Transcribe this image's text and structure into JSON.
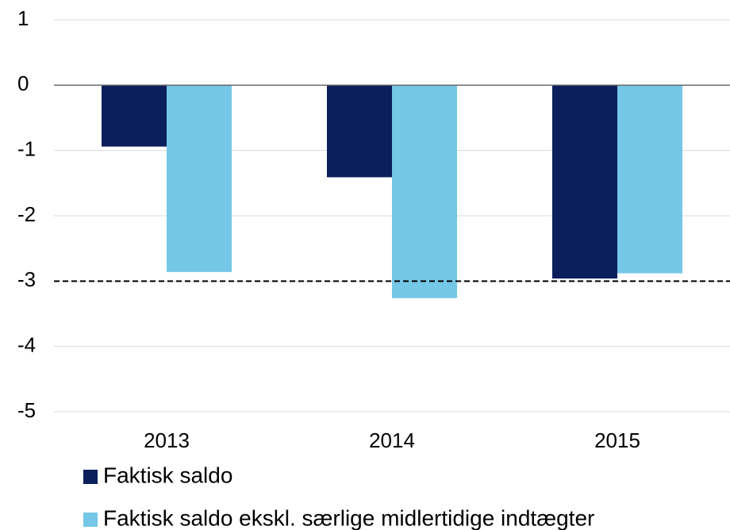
{
  "chart_data": {
    "type": "bar",
    "categories": [
      "2013",
      "2014",
      "2015"
    ],
    "series": [
      {
        "name": "Faktisk saldo",
        "color": "#0b1f5c",
        "values": [
          -0.94,
          -1.41,
          -2.96
        ]
      },
      {
        "name": "Faktisk saldo ekskl. særlige midlertidige indtægter",
        "color": "#74c7e6",
        "values": [
          -2.86,
          -3.26,
          -2.88
        ]
      }
    ],
    "ylim": [
      -5,
      1
    ],
    "yticks": [
      1,
      0,
      -1,
      -2,
      -3,
      -4,
      -5
    ],
    "grid": true,
    "reference_line": -3
  }
}
